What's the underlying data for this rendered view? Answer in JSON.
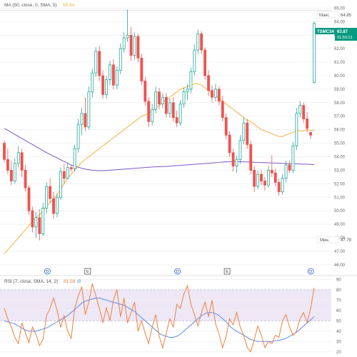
{
  "chart_data": [
    {
      "type": "candlestick",
      "legend": {
        "label": "MA (50, close, 0, SMA, 5)",
        "value": "55.94",
        "value_color": "#f5b041"
      },
      "y_ticks": [
        46,
        47,
        48,
        49,
        50,
        51,
        52,
        53,
        54,
        55,
        56,
        57,
        58,
        59,
        60,
        61,
        62,
        63,
        64,
        65
      ],
      "ylim": [
        45.2,
        65.6
      ],
      "grid": true,
      "x_markers": [
        {
          "label": "D",
          "pos": 0.07
        },
        {
          "label": "E",
          "pos": 0.2
        },
        {
          "label": "D",
          "pos": 0.49
        },
        {
          "label": "E",
          "pos": 0.65
        },
        {
          "label": "D",
          "pos": 0.92
        }
      ],
      "price_labels": {
        "max": {
          "label": "Макс.",
          "value": "64.85"
        },
        "current": {
          "ticker": "TSMC34",
          "value": "63.87",
          "countdown": "01:50:13"
        },
        "min": {
          "label": "Мин.",
          "value": "47.79"
        }
      },
      "colors": {
        "up": "#26a69a",
        "down": "#ef5350",
        "ma_fast": "#f5b041",
        "ma_slow": "#7e57c2",
        "current": "#089981"
      },
      "candles": [
        [
          55.0,
          55.2,
          53.6,
          53.8
        ],
        [
          53.8,
          54.6,
          52.7,
          53.0
        ],
        [
          53.0,
          53.7,
          51.9,
          52.2
        ],
        [
          52.2,
          53.9,
          52.0,
          53.5
        ],
        [
          53.5,
          54.8,
          53.2,
          54.3
        ],
        [
          54.3,
          54.6,
          52.5,
          53.0
        ],
        [
          53.0,
          53.4,
          51.4,
          51.7
        ],
        [
          51.7,
          51.9,
          49.7,
          50.0
        ],
        [
          50.0,
          50.3,
          48.4,
          48.8
        ],
        [
          48.8,
          49.9,
          48.0,
          49.5
        ],
        [
          49.5,
          50.1,
          47.8,
          48.3
        ],
        [
          48.3,
          50.6,
          48.1,
          50.2
        ],
        [
          50.2,
          52.1,
          49.8,
          51.8
        ],
        [
          51.8,
          52.4,
          50.6,
          50.9
        ],
        [
          50.9,
          51.4,
          49.4,
          49.8
        ],
        [
          49.8,
          51.3,
          49.5,
          51.0
        ],
        [
          51.0,
          53.2,
          50.8,
          52.9
        ],
        [
          52.9,
          53.5,
          52.0,
          52.4
        ],
        [
          52.4,
          53.5,
          52.3,
          53.2
        ],
        [
          53.2,
          53.4,
          52.9,
          53.1
        ],
        [
          53.1,
          54.9,
          52.9,
          54.6
        ],
        [
          54.6,
          56.8,
          54.3,
          56.4
        ],
        [
          56.4,
          57.6,
          55.6,
          57.2
        ],
        [
          57.2,
          58.4,
          55.9,
          56.2
        ],
        [
          56.2,
          59.2,
          56.0,
          58.8
        ],
        [
          58.8,
          60.5,
          58.4,
          60.2
        ],
        [
          60.2,
          62.1,
          59.9,
          61.8
        ],
        [
          61.8,
          62.2,
          59.6,
          60.0
        ],
        [
          60.0,
          60.4,
          58.3,
          58.6
        ],
        [
          58.6,
          60.0,
          58.3,
          59.7
        ],
        [
          59.7,
          61.1,
          59.3,
          60.8
        ],
        [
          60.8,
          61.2,
          59.0,
          59.3
        ],
        [
          59.3,
          60.7,
          59.0,
          60.4
        ],
        [
          60.4,
          62.4,
          60.1,
          62.0
        ],
        [
          62.0,
          63.2,
          61.7,
          62.8
        ],
        [
          62.8,
          64.9,
          62.5,
          63.0
        ],
        [
          63.0,
          63.6,
          61.1,
          61.5
        ],
        [
          61.5,
          63.2,
          61.2,
          62.9
        ],
        [
          62.9,
          63.1,
          61.0,
          61.3
        ],
        [
          61.3,
          61.6,
          59.3,
          59.6
        ],
        [
          59.6,
          59.9,
          57.8,
          58.1
        ],
        [
          58.1,
          58.4,
          56.2,
          56.6
        ],
        [
          56.6,
          57.9,
          56.3,
          57.5
        ],
        [
          57.5,
          59.2,
          57.2,
          58.8
        ],
        [
          58.8,
          59.1,
          57.5,
          57.9
        ],
        [
          57.9,
          58.7,
          57.6,
          58.4
        ],
        [
          58.4,
          58.7,
          56.9,
          57.2
        ],
        [
          57.2,
          58.3,
          56.9,
          58.0
        ],
        [
          58.0,
          58.4,
          56.6,
          56.9
        ],
        [
          56.9,
          57.4,
          56.2,
          56.5
        ],
        [
          56.5,
          58.2,
          56.3,
          57.9
        ],
        [
          57.9,
          59.1,
          57.6,
          58.8
        ],
        [
          58.8,
          59.4,
          58.2,
          59.0
        ],
        [
          59.0,
          60.6,
          58.7,
          60.3
        ],
        [
          60.3,
          62.3,
          60.0,
          61.9
        ],
        [
          61.9,
          63.4,
          61.6,
          63.1
        ],
        [
          63.1,
          63.3,
          61.6,
          61.9
        ],
        [
          61.9,
          62.1,
          59.7,
          60.0
        ],
        [
          60.0,
          60.4,
          58.5,
          58.9
        ],
        [
          58.9,
          59.3,
          58.0,
          58.4
        ],
        [
          58.4,
          59.4,
          58.1,
          59.0
        ],
        [
          59.0,
          59.2,
          57.8,
          58.1
        ],
        [
          58.1,
          58.5,
          56.6,
          56.9
        ],
        [
          56.9,
          57.2,
          55.3,
          55.6
        ],
        [
          55.6,
          55.9,
          54.0,
          54.3
        ],
        [
          54.3,
          54.6,
          52.9,
          53.3
        ],
        [
          53.3,
          54.1,
          52.8,
          53.8
        ],
        [
          53.8,
          55.6,
          53.5,
          55.2
        ],
        [
          55.2,
          56.9,
          54.9,
          56.5
        ],
        [
          56.5,
          56.8,
          54.6,
          54.9
        ],
        [
          54.9,
          55.2,
          52.7,
          53.0
        ],
        [
          53.0,
          53.3,
          51.4,
          51.8
        ],
        [
          51.8,
          53.0,
          51.6,
          52.7
        ],
        [
          52.7,
          53.0,
          51.9,
          52.2
        ],
        [
          52.2,
          52.5,
          51.5,
          51.9
        ],
        [
          51.9,
          53.3,
          51.7,
          53.0
        ],
        [
          53.0,
          54.1,
          52.5,
          52.8
        ],
        [
          52.8,
          53.1,
          51.8,
          52.1
        ],
        [
          52.1,
          52.4,
          51.1,
          51.4
        ],
        [
          51.4,
          52.7,
          51.2,
          52.4
        ],
        [
          52.4,
          53.7,
          52.1,
          53.4
        ],
        [
          53.4,
          53.7,
          52.8,
          53.0
        ],
        [
          53.0,
          55.1,
          52.8,
          54.8
        ],
        [
          54.8,
          57.6,
          54.5,
          57.2
        ],
        [
          57.2,
          58.1,
          56.9,
          57.8
        ],
        [
          57.8,
          58.0,
          56.5,
          56.8
        ],
        [
          56.8,
          57.3,
          55.8,
          56.1
        ],
        [
          55.8,
          55.8,
          55.3,
          55.6
        ],
        [
          59.5,
          64.0,
          59.4,
          63.87
        ]
      ],
      "ma_fast": [
        46.8,
        47.1,
        47.4,
        47.7,
        48.0,
        48.3,
        48.6,
        48.9,
        49.2,
        49.5,
        49.7,
        50.0,
        50.3,
        50.6,
        50.9,
        51.2,
        51.6,
        52.0,
        52.4,
        52.7,
        53.0,
        53.3,
        53.6,
        53.8,
        54.0,
        54.2,
        54.4,
        54.6,
        54.8,
        55.0,
        55.2,
        55.4,
        55.6,
        55.8,
        56.0,
        56.2,
        56.4,
        56.6,
        56.8,
        57.0,
        57.1,
        57.2,
        57.4,
        57.6,
        57.8,
        58.0,
        58.2,
        58.4,
        58.6,
        58.8,
        59.0,
        59.1,
        59.2,
        59.3,
        59.4,
        59.4,
        59.3,
        59.1,
        58.9,
        58.7,
        58.5,
        58.3,
        58.1,
        57.9,
        57.7,
        57.5,
        57.3,
        57.1,
        56.9,
        56.7,
        56.6,
        56.4,
        56.2,
        56.0,
        55.9,
        55.8,
        55.7,
        55.6,
        55.5,
        55.5,
        55.6,
        55.7,
        55.8,
        55.9,
        55.9,
        55.9,
        56.0,
        55.94,
        55.94
      ],
      "ma_slow": [
        56.1,
        55.95,
        55.8,
        55.65,
        55.5,
        55.35,
        55.2,
        55.05,
        54.9,
        54.75,
        54.6,
        54.45,
        54.3,
        54.17,
        54.04,
        53.91,
        53.78,
        53.65,
        53.52,
        53.39,
        53.3,
        53.22,
        53.14,
        53.08,
        53.04,
        53.0,
        52.98,
        52.97,
        52.97,
        52.98,
        53.0,
        53.02,
        53.04,
        53.06,
        53.08,
        53.1,
        53.12,
        53.14,
        53.16,
        53.18,
        53.2,
        53.22,
        53.24,
        53.25,
        53.26,
        53.27,
        53.28,
        53.3,
        53.32,
        53.34,
        53.36,
        53.38,
        53.4,
        53.42,
        53.44,
        53.46,
        53.48,
        53.5,
        53.52,
        53.54,
        53.56,
        53.58,
        53.6,
        53.62,
        53.63,
        53.64,
        53.64,
        53.63,
        53.62,
        53.61,
        53.6,
        53.59,
        53.58,
        53.57,
        53.56,
        53.55,
        53.54,
        53.53,
        53.52,
        53.51,
        53.5,
        53.49,
        53.48,
        53.47,
        53.46,
        53.45,
        53.44,
        53.43,
        53.42
      ]
    },
    {
      "type": "line",
      "legend": {
        "label": "RSI (7, close, SMA, 14, 2)",
        "value1": "81.58",
        "value2": "Ø"
      },
      "y_ticks": [
        20,
        30,
        40,
        50,
        60,
        70,
        80,
        90
      ],
      "ylim": [
        15,
        93
      ],
      "band": [
        50,
        80
      ],
      "grid": true,
      "colors": {
        "rsi": "#f57f3a",
        "signal": "#5b8cf0",
        "band": "#ede7f6"
      },
      "rsi": [
        62,
        52,
        44,
        34,
        28,
        48,
        38,
        29,
        44,
        37,
        26,
        32,
        55,
        62,
        72,
        60,
        44,
        55,
        40,
        33,
        62,
        74,
        83,
        56,
        68,
        86,
        74,
        62,
        48,
        63,
        50,
        70,
        80,
        54,
        72,
        48,
        58,
        68,
        40,
        50,
        38,
        28,
        44,
        56,
        35,
        24,
        38,
        52,
        44,
        66,
        62,
        76,
        84,
        66,
        56,
        45,
        58,
        68,
        54,
        70,
        47,
        37,
        24,
        35,
        52,
        46,
        58,
        44,
        36,
        24,
        20,
        32,
        45,
        36,
        24,
        30,
        28,
        36,
        34,
        50,
        56,
        44,
        36,
        40,
        52,
        58,
        48,
        62,
        82
      ],
      "signal": [
        50,
        49,
        48,
        47,
        45,
        43,
        41,
        40,
        40,
        40,
        41,
        42,
        43,
        45,
        47,
        49,
        51,
        53,
        55,
        58,
        61,
        64,
        67,
        69,
        70,
        71,
        72,
        72,
        71,
        70,
        69,
        68,
        67,
        66,
        65,
        63,
        61,
        59,
        56,
        53,
        50,
        47,
        44,
        41,
        38,
        36,
        35,
        34,
        34,
        35,
        37,
        40,
        43,
        46,
        49,
        52,
        55,
        57,
        58,
        58,
        57,
        55,
        52,
        49,
        45,
        42,
        40,
        38,
        36,
        34,
        32,
        31,
        30,
        30,
        30,
        30,
        30,
        31,
        31,
        32,
        33,
        35,
        37,
        39,
        42,
        45,
        48,
        51,
        54
      ]
    }
  ]
}
